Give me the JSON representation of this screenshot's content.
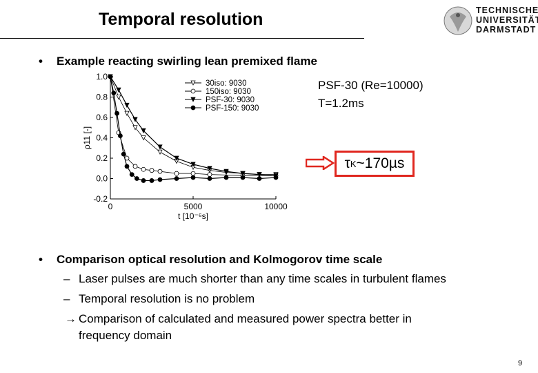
{
  "slide": {
    "title": "Temporal resolution",
    "page_number": "9",
    "logo_lines": [
      "TECHNISCHE",
      "UNIVERSITÄT",
      "DARMSTADT"
    ]
  },
  "bullets": [
    {
      "text": "Example reacting swirling lean premixed flame"
    },
    {
      "text": "Comparison optical resolution and Kolmogorov time scale"
    }
  ],
  "sub_items": [
    "Laser pulses are much shorter than any time scales in turbulent flames",
    "Temporal resolution is no problem"
  ],
  "conclusion": {
    "line1": "Comparison of calculated and measured power spectra better in",
    "line2": "frequency domain"
  },
  "annotation": {
    "psf_line1": "PSF-30 (Re=10000)",
    "psf_line2": "T=1.2ms",
    "tau_symbol": "τ",
    "tau_sub": "K",
    "tau_value": "~170µs",
    "highlight_color": "#e0271f"
  },
  "chart_data": {
    "type": "line",
    "ylabel": "ρ11 [-]",
    "xlabel": "t [10⁻⁶s]",
    "xlim": [
      0,
      10000
    ],
    "ylim": [
      -0.2,
      1.0
    ],
    "xticks": [
      "0",
      "5000",
      "10000"
    ],
    "yticks": [
      "-0.2",
      "0.0",
      "0.2",
      "0.4",
      "0.6",
      "0.8",
      "1.0"
    ],
    "legend_position": "top-right",
    "series": [
      {
        "name": "30iso: 9030",
        "marker": "triangle-down-open",
        "x": [
          0,
          500,
          1000,
          1500,
          2000,
          3000,
          4000,
          5000,
          6000,
          7000,
          8000,
          9000,
          10000
        ],
        "y": [
          1.0,
          0.8,
          0.64,
          0.5,
          0.4,
          0.26,
          0.17,
          0.11,
          0.08,
          0.06,
          0.05,
          0.04,
          0.04
        ]
      },
      {
        "name": "150iso: 9030",
        "marker": "circle-open",
        "x": [
          0,
          500,
          1000,
          1500,
          2000,
          2500,
          3000,
          4000,
          5000,
          6000,
          8000,
          10000
        ],
        "y": [
          1.0,
          0.45,
          0.2,
          0.12,
          0.09,
          0.08,
          0.07,
          0.05,
          0.05,
          0.04,
          0.03,
          0.03
        ]
      },
      {
        "name": "PSF-30: 9030",
        "marker": "triangle-down-filled",
        "x": [
          0,
          500,
          1000,
          1500,
          2000,
          3000,
          4000,
          5000,
          6000,
          7000,
          8000,
          9000,
          10000
        ],
        "y": [
          1.0,
          0.87,
          0.72,
          0.58,
          0.47,
          0.31,
          0.2,
          0.14,
          0.1,
          0.07,
          0.05,
          0.04,
          0.03
        ]
      },
      {
        "name": "PSF-150: 9030",
        "marker": "circle-filled",
        "x": [
          0,
          200,
          400,
          600,
          800,
          1000,
          1300,
          1600,
          2000,
          2500,
          3000,
          4000,
          5000,
          6000,
          7000,
          8000,
          9000,
          10000
        ],
        "y": [
          1.0,
          0.84,
          0.64,
          0.42,
          0.24,
          0.12,
          0.04,
          0.0,
          -0.02,
          -0.02,
          -0.01,
          0.0,
          0.01,
          0.0,
          0.01,
          0.01,
          0.0,
          0.01
        ]
      }
    ]
  }
}
